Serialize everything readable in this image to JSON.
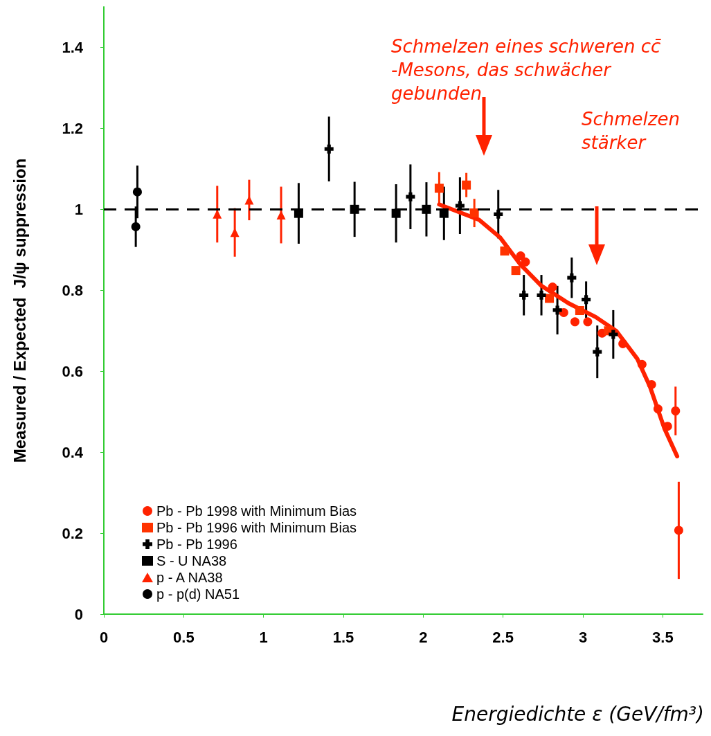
{
  "chart_data": {
    "type": "scatter",
    "xlabel": "Energiedichte ε (GeV/fm³)",
    "ylabel": "Measured / Expected  J/ψ suppression",
    "xlim": [
      0,
      3.75
    ],
    "xticks": [
      0,
      0.5,
      1,
      1.5,
      2,
      2.5,
      3,
      3.5
    ],
    "ylim": [
      0,
      1.5
    ],
    "yticks": [
      0,
      0.2,
      0.4,
      0.6,
      0.8,
      1,
      1.2,
      1.4
    ],
    "grid": false,
    "legend": "bottom left",
    "series": [
      {
        "name": "Pb - Pb 1998 with Minimum Bias",
        "color": "#ff2200",
        "marker": "circle",
        "x": [
          2.61,
          2.64,
          2.81,
          2.88,
          2.95,
          3.03,
          3.12,
          3.25,
          3.37,
          3.43,
          3.47,
          3.53,
          3.58,
          3.6
        ],
        "values": [
          0.885,
          0.87,
          0.808,
          0.745,
          0.722,
          0.722,
          0.694,
          0.668,
          0.617,
          0.567,
          0.507,
          0.464,
          0.502,
          0.207
        ],
        "errors": [
          null,
          null,
          null,
          null,
          null,
          null,
          null,
          null,
          null,
          null,
          null,
          null,
          0.06,
          0.12
        ]
      },
      {
        "name": "Pb - Pb 1996 with Minimum Bias",
        "color": "#ff3300",
        "marker": "square",
        "x": [
          2.1,
          2.27,
          2.32,
          2.51,
          2.58,
          2.79,
          2.98,
          3.16
        ],
        "values": [
          1.052,
          1.06,
          0.991,
          0.897,
          0.849,
          0.78,
          0.75,
          0.7
        ],
        "errors": [
          0.04,
          0.03,
          0.035,
          null,
          null,
          null,
          null,
          null
        ]
      },
      {
        "name": "Pb - Pb 1996",
        "color": "#000000",
        "marker": "cross",
        "x": [
          1.41,
          1.92,
          2.23,
          2.47,
          2.63,
          2.74,
          2.84,
          2.93,
          3.02,
          3.09,
          3.19
        ],
        "values": [
          1.149,
          1.031,
          1.009,
          0.988,
          0.788,
          0.788,
          0.751,
          0.831,
          0.777,
          0.648,
          0.691
        ],
        "errors": [
          0.08,
          0.08,
          0.07,
          0.06,
          0.05,
          0.05,
          0.06,
          0.05,
          0.045,
          0.065,
          0.06
        ]
      },
      {
        "name": "S - U NA38",
        "color": "#000000",
        "marker": "square",
        "x": [
          1.22,
          1.57,
          1.83,
          2.02,
          2.13
        ],
        "values": [
          0.99,
          1.0,
          0.99,
          1.0,
          0.99
        ],
        "errors": [
          0.075,
          0.068,
          0.072,
          0.067,
          0.066
        ]
      },
      {
        "name": "p - A NA38",
        "color": "#ff2200",
        "marker": "triangle",
        "x": [
          0.71,
          0.82,
          0.91,
          1.11
        ],
        "values": [
          0.988,
          0.943,
          1.023,
          0.986
        ],
        "errors": [
          0.07,
          0.06,
          0.05,
          0.07
        ]
      },
      {
        "name": "p - p(d) NA51",
        "color": "#000000",
        "marker": "circle",
        "x": [
          0.21,
          0.2
        ],
        "values": [
          1.043,
          0.957
        ],
        "errors": [
          0.065,
          0.05
        ]
      },
      {
        "type": "line",
        "color": "#ff2200",
        "marker": "none",
        "x": [
          2.1,
          2.35,
          2.48,
          2.61,
          2.74,
          2.91,
          3.08,
          3.21,
          3.34,
          3.42,
          3.51,
          3.59
        ],
        "values": [
          1.012,
          0.974,
          0.931,
          0.863,
          0.811,
          0.768,
          0.734,
          0.699,
          0.631,
          0.562,
          0.459,
          0.39
        ]
      }
    ],
    "ref_lines": [
      {
        "axis": "y",
        "value": 1,
        "color": "#000000",
        "line_style": "dashed"
      }
    ],
    "annotations": [
      "Schmelzen eines schweren cc̄-Mesons, das schwächer gebunden",
      "Schmelzen stärker"
    ]
  }
}
